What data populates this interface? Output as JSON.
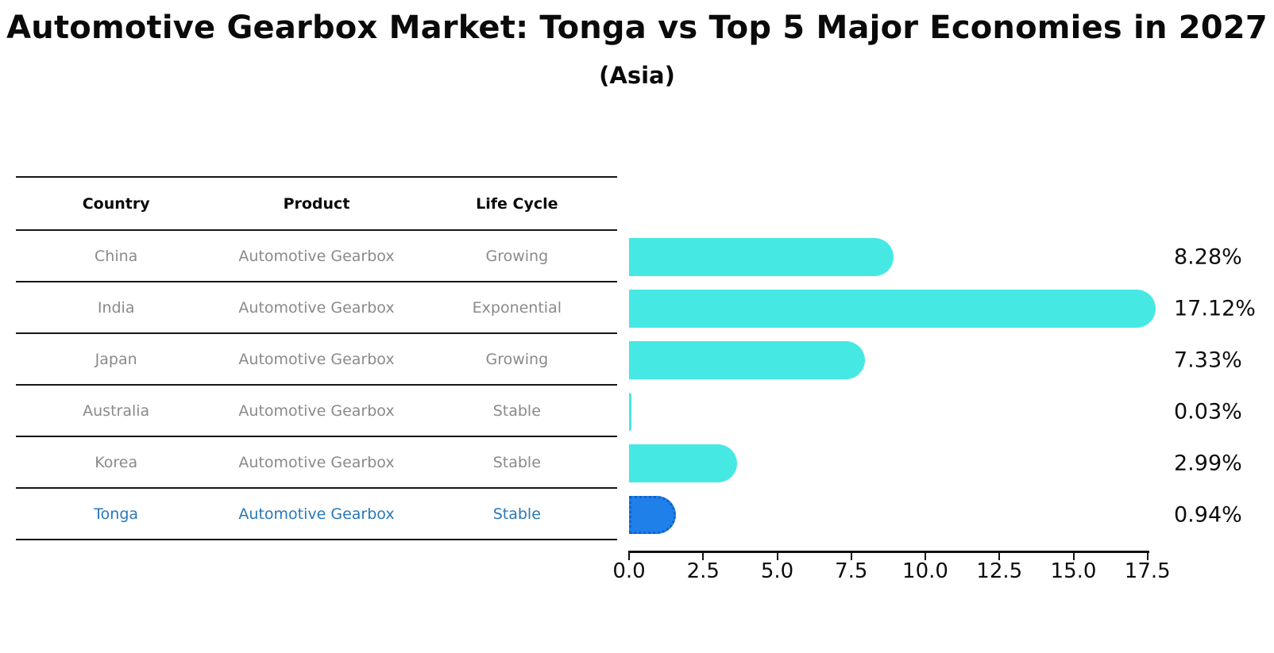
{
  "title": "Automotive Gearbox Market: Tonga vs Top 5 Major Economies in 2027",
  "subtitle": "(Asia)",
  "table": {
    "headers": [
      "Country",
      "Product",
      "Life Cycle"
    ],
    "rows": [
      {
        "country": "China",
        "product": "Automotive Gearbox",
        "life_cycle": "Growing",
        "highlight": false
      },
      {
        "country": "India",
        "product": "Automotive Gearbox",
        "life_cycle": "Exponential",
        "highlight": false
      },
      {
        "country": "Japan",
        "product": "Automotive Gearbox",
        "life_cycle": "Growing",
        "highlight": false
      },
      {
        "country": "Australia",
        "product": "Automotive Gearbox",
        "life_cycle": "Stable",
        "highlight": false
      },
      {
        "country": "Korea",
        "product": "Automotive Gearbox",
        "life_cycle": "Stable",
        "highlight": false
      },
      {
        "country": "Tonga",
        "product": "Automotive Gearbox",
        "life_cycle": "Stable",
        "highlight": true
      }
    ]
  },
  "chart_data": {
    "type": "bar",
    "orientation": "horizontal",
    "title": "Automotive Gearbox Market: Tonga vs Top 5 Major Economies in 2027",
    "subtitle": "(Asia)",
    "categories": [
      "China",
      "India",
      "Japan",
      "Australia",
      "Korea",
      "Tonga"
    ],
    "values": [
      8.28,
      17.12,
      7.33,
      0.03,
      2.99,
      0.94
    ],
    "value_labels": [
      "8.28%",
      "17.12%",
      "7.33%",
      "0.03%",
      "2.99%",
      "0.94%"
    ],
    "highlight_index": 5,
    "xlabel": "",
    "ylabel": "",
    "x_ticks": [
      0.0,
      2.5,
      5.0,
      7.5,
      10.0,
      12.5,
      15.0,
      17.5
    ],
    "x_tick_labels": [
      "0.0",
      "2.5",
      "5.0",
      "7.5",
      "10.0",
      "12.5",
      "15.0",
      "17.5"
    ],
    "xlim": [
      0,
      17.55
    ],
    "grid": false,
    "legend": false,
    "bar_color": "#46e8e4",
    "highlight_bar_color": "#1e80e8",
    "highlight_text_color": "#2878b8"
  }
}
